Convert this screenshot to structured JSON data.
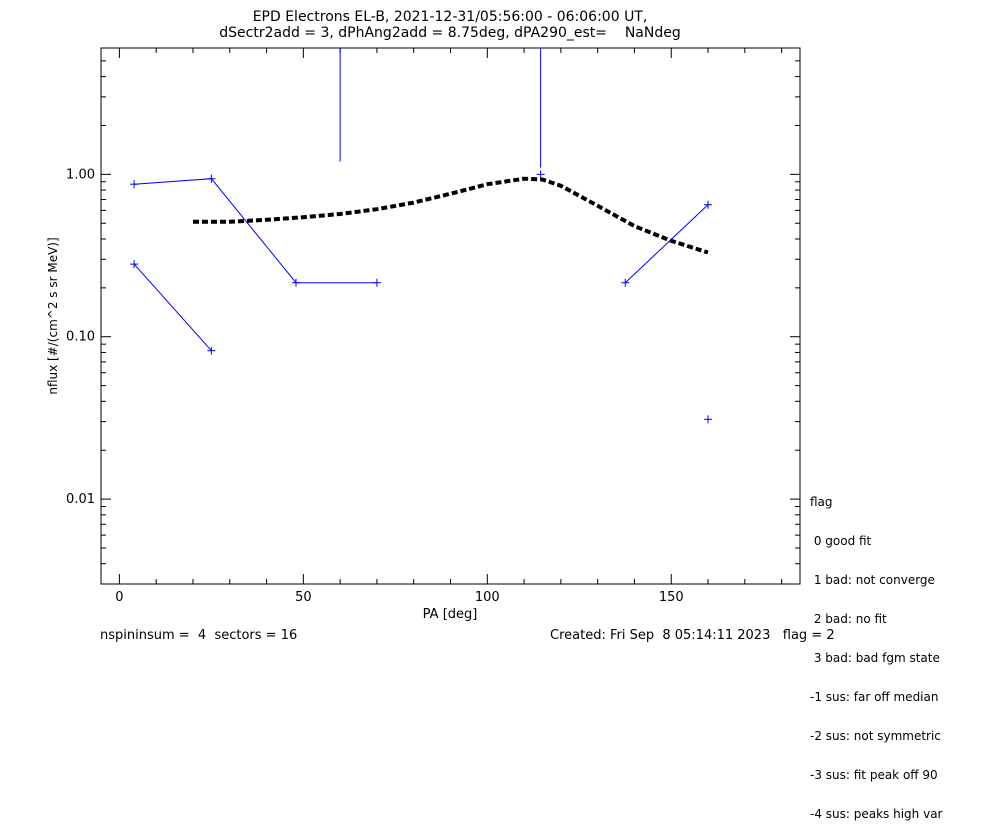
{
  "chart_data": {
    "type": "scatter",
    "title": "EPD Electrons EL-B, 2021-12-31/05:56:00 - 06:06:00 UT,",
    "subtitle": "dSectr2add = 3, dPhAng2add = 8.75deg, dPA290_est=    NaNdeg",
    "xlabel": "PA [deg]",
    "ylabel": "nflux [#/(cm^2 s sr MeV)]",
    "xlim": [
      -5,
      185
    ],
    "ylim": [
      0.003,
      6
    ],
    "yscale": "log",
    "xticks": [
      0,
      50,
      100,
      150
    ],
    "xtick_labels": [
      "0",
      "50",
      "100",
      "150"
    ],
    "yticks": [
      0.01,
      0.1,
      1.0
    ],
    "ytick_labels": [
      "0.01",
      "0.10",
      "1.00"
    ],
    "series": [
      {
        "color": "#0000ff",
        "style": "solid",
        "marker": "+",
        "x": [
          4,
          25,
          48,
          70
        ],
        "y": [
          0.87,
          0.94,
          0.215,
          0.215
        ]
      },
      {
        "color": "#0000ff",
        "style": "solid",
        "marker": "+",
        "x": [
          4,
          25
        ],
        "y": [
          0.28,
          0.082
        ]
      },
      {
        "color": "#0000ff",
        "style": "solid",
        "marker": "+",
        "x": [
          137.5,
          160
        ],
        "y": [
          0.215,
          0.65
        ]
      },
      {
        "color": "#0000ff",
        "style": "none",
        "marker": "+",
        "x": [
          114.5,
          160
        ],
        "y": [
          1.0,
          0.031
        ]
      },
      {
        "color": "#0000ff",
        "style": "vline",
        "marker": "none",
        "x": [
          60,
          60
        ],
        "y": [
          1.2,
          6
        ]
      },
      {
        "color": "#0000ff",
        "style": "vline",
        "marker": "none",
        "x": [
          114.5,
          114.5
        ],
        "y": [
          1.1,
          6
        ]
      },
      {
        "color": "#000000",
        "style": "dashed-thick",
        "marker": "none",
        "x": [
          20,
          30,
          40,
          50,
          60,
          70,
          80,
          90,
          100,
          110,
          115,
          120,
          130,
          140,
          150,
          160
        ],
        "y": [
          0.51,
          0.51,
          0.525,
          0.545,
          0.57,
          0.61,
          0.67,
          0.76,
          0.87,
          0.94,
          0.93,
          0.85,
          0.64,
          0.48,
          0.39,
          0.33
        ]
      }
    ],
    "legend": {
      "title": "flag",
      "items": [
        " 0 good fit",
        " 1 bad: not converge",
        " 2 bad: no fit",
        " 3 bad: bad fgm state",
        "-1 sus: far off median",
        "-2 sus: not symmetric",
        "-3 sus: fit peak off 90",
        "-4 sus: peaks high var"
      ]
    }
  },
  "footer": {
    "left": "nspininsum =  4  sectors = 16",
    "right": "Created: Fri Sep  8 05:14:11 2023   flag = 2"
  }
}
